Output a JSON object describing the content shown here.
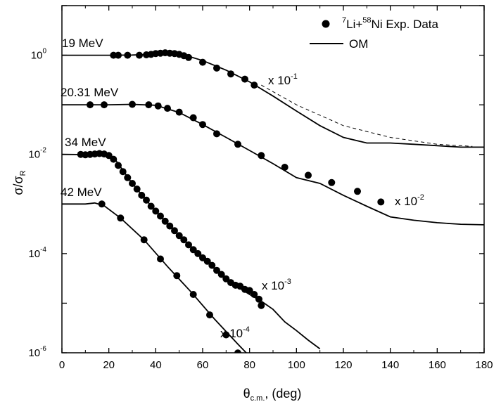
{
  "chart_data": {
    "type": "scatter",
    "title": "",
    "xlabel": "θ",
    "xlabel_sub": "c.m.",
    "xlabel_suffix": ", (deg)",
    "ylabel": "σ/σ",
    "ylabel_sub": "R",
    "xlim": [
      0,
      180
    ],
    "ylim_log10": [
      -6,
      1
    ],
    "y_scale": "log",
    "x_ticks": [
      0,
      20,
      40,
      60,
      80,
      100,
      120,
      140,
      160,
      180
    ],
    "x_tick_labels": [
      "0",
      "20",
      "40",
      "60",
      "80",
      "100",
      "120",
      "140",
      "160",
      "180"
    ],
    "y_ticks_log10": [
      -6,
      -4,
      -2,
      0
    ],
    "y_tick_labels": [
      "-6",
      "-4",
      "-2",
      "0"
    ],
    "y_tick_base": "10",
    "legend": {
      "position": "top-right",
      "entries": [
        {
          "kind": "marker",
          "label": "Li+",
          "pre_sup": "7",
          "mid_sup": "58",
          "label_end": "Ni Exp. Data"
        },
        {
          "kind": "line",
          "label": "OM"
        }
      ]
    },
    "series": [
      {
        "name": "19 MeV",
        "energy_label": "19 MeV",
        "scale_label": "x  10",
        "scale_exp": "-1",
        "points": [
          [
            22,
            1.0
          ],
          [
            24,
            1.0
          ],
          [
            28,
            1.0
          ],
          [
            33,
            1.0
          ],
          [
            36,
            1.02
          ],
          [
            38,
            1.04
          ],
          [
            40,
            1.08
          ],
          [
            42,
            1.1
          ],
          [
            44,
            1.12
          ],
          [
            46,
            1.1
          ],
          [
            48,
            1.08
          ],
          [
            50,
            1.04
          ],
          [
            52,
            0.98
          ],
          [
            54,
            0.9
          ],
          [
            60,
            0.72
          ],
          [
            66,
            0.55
          ],
          [
            72,
            0.42
          ],
          [
            78,
            0.33
          ],
          [
            82,
            0.25
          ]
        ],
        "om_curve": [
          [
            0,
            1.0
          ],
          [
            20,
            1.0
          ],
          [
            30,
            1.01
          ],
          [
            40,
            1.05
          ],
          [
            45,
            1.06
          ],
          [
            50,
            1.03
          ],
          [
            55,
            0.92
          ],
          [
            60,
            0.78
          ],
          [
            70,
            0.5
          ],
          [
            80,
            0.29
          ],
          [
            90,
            0.15
          ],
          [
            100,
            0.075
          ],
          [
            110,
            0.038
          ],
          [
            120,
            0.022
          ],
          [
            130,
            0.017
          ],
          [
            140,
            0.017
          ],
          [
            150,
            0.016
          ],
          [
            160,
            0.015
          ],
          [
            170,
            0.014
          ],
          [
            180,
            0.014
          ]
        ],
        "om_dashed_tail": [
          [
            85,
            0.25
          ],
          [
            100,
            0.1
          ],
          [
            120,
            0.038
          ],
          [
            140,
            0.022
          ],
          [
            160,
            0.016
          ],
          [
            175,
            0.0145
          ]
        ]
      },
      {
        "name": "20.31 MeV",
        "energy_label": "20.31 MeV",
        "scale_label": "x  10",
        "scale_exp": "-2",
        "points": [
          [
            12,
            0.1
          ],
          [
            18,
            0.1
          ],
          [
            30,
            0.102
          ],
          [
            37,
            0.1
          ],
          [
            41,
            0.095
          ],
          [
            45,
            0.085
          ],
          [
            50,
            0.071
          ],
          [
            56,
            0.055
          ],
          [
            60,
            0.04
          ],
          [
            66,
            0.026
          ],
          [
            75,
            0.016
          ],
          [
            85,
            0.0095
          ],
          [
            95,
            0.0055
          ],
          [
            105,
            0.0038
          ],
          [
            115,
            0.0027
          ],
          [
            126,
            0.0018
          ],
          [
            136,
            0.0011
          ]
        ],
        "om_curve": [
          [
            0,
            0.1
          ],
          [
            20,
            0.1
          ],
          [
            30,
            0.102
          ],
          [
            40,
            0.098
          ],
          [
            50,
            0.07
          ],
          [
            60,
            0.04
          ],
          [
            70,
            0.022
          ],
          [
            80,
            0.012
          ],
          [
            90,
            0.0065
          ],
          [
            100,
            0.0034
          ],
          [
            110,
            0.0026
          ],
          [
            120,
            0.0015
          ],
          [
            130,
            0.0009
          ],
          [
            140,
            0.00055
          ],
          [
            150,
            0.00047
          ],
          [
            160,
            0.00042
          ],
          [
            170,
            0.00039
          ],
          [
            180,
            0.00038
          ]
        ]
      },
      {
        "name": "34 MeV",
        "energy_label": "34 MeV",
        "scale_label": "x  10",
        "scale_exp": "-3",
        "points": [
          [
            8,
            0.01
          ],
          [
            10,
            0.0098
          ],
          [
            12,
            0.01
          ],
          [
            14,
            0.0102
          ],
          [
            16,
            0.0104
          ],
          [
            18,
            0.0102
          ],
          [
            20,
            0.0095
          ],
          [
            22,
            0.008
          ],
          [
            24,
            0.006
          ],
          [
            26,
            0.0045
          ],
          [
            28,
            0.0034
          ],
          [
            30,
            0.0026
          ],
          [
            32,
            0.002
          ],
          [
            34,
            0.0015
          ],
          [
            36,
            0.0012
          ],
          [
            38,
            0.0009
          ],
          [
            40,
            0.00072
          ],
          [
            42,
            0.00057
          ],
          [
            44,
            0.00045
          ],
          [
            46,
            0.00036
          ],
          [
            48,
            0.00029
          ],
          [
            50,
            0.00023
          ],
          [
            52,
            0.00019
          ],
          [
            54,
            0.00015
          ],
          [
            56,
            0.00012
          ],
          [
            58,
            0.0001
          ],
          [
            60,
            8.2e-05
          ],
          [
            62,
            7e-05
          ],
          [
            64,
            5.8e-05
          ],
          [
            66,
            4.6e-05
          ],
          [
            68,
            3.8e-05
          ],
          [
            70,
            3.1e-05
          ],
          [
            72,
            2.6e-05
          ],
          [
            74,
            2.3e-05
          ],
          [
            76,
            2.2e-05
          ],
          [
            78,
            1.9e-05
          ],
          [
            80,
            1.8e-05
          ],
          [
            82,
            1.5e-05
          ],
          [
            84,
            1.2e-05
          ],
          [
            85,
            9e-06
          ]
        ],
        "om_curve": [
          [
            0,
            0.01
          ],
          [
            10,
            0.0099
          ],
          [
            17,
            0.0104
          ],
          [
            22,
            0.0088
          ],
          [
            30,
            0.0026
          ],
          [
            40,
            0.00071
          ],
          [
            50,
            0.00023
          ],
          [
            60,
            8.2e-05
          ],
          [
            70,
            3e-05
          ],
          [
            80,
            1.5e-05
          ],
          [
            85,
            1.1e-05
          ],
          [
            90,
            7.5e-06
          ],
          [
            95,
            4.2e-06
          ],
          [
            100,
            2.8e-06
          ],
          [
            105,
            1.8e-06
          ],
          [
            110,
            1.2e-06
          ]
        ]
      },
      {
        "name": "42 MeV",
        "energy_label": "42 MeV",
        "scale_label": "x  10",
        "scale_exp": "-4",
        "points": [
          [
            17,
            0.001
          ],
          [
            25,
            0.00052
          ],
          [
            35,
            0.00019
          ],
          [
            42,
            7.8e-05
          ],
          [
            49,
            3.6e-05
          ],
          [
            56,
            1.5e-05
          ],
          [
            63,
            5.8e-06
          ],
          [
            70,
            2.3e-06
          ],
          [
            75,
            9.9e-07
          ]
        ],
        "om_curve": [
          [
            0,
            0.001
          ],
          [
            10,
            0.001
          ],
          [
            14,
            0.00105
          ],
          [
            18,
            0.00092
          ],
          [
            25,
            0.00052
          ],
          [
            35,
            0.00019
          ],
          [
            45,
            5.5e-05
          ],
          [
            55,
            1.7e-05
          ],
          [
            65,
            4.8e-06
          ],
          [
            75,
            1.5e-06
          ],
          [
            80,
            8.5e-07
          ]
        ]
      }
    ]
  }
}
